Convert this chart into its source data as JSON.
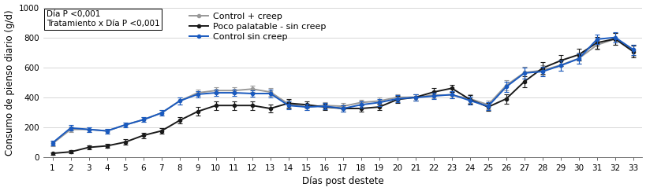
{
  "days": [
    1,
    2,
    3,
    4,
    5,
    6,
    7,
    8,
    9,
    10,
    11,
    12,
    13,
    14,
    15,
    16,
    17,
    18,
    19,
    20,
    21,
    22,
    23,
    24,
    25,
    26,
    27,
    28,
    29,
    30,
    31,
    32,
    33
  ],
  "control_creep": [
    90,
    185,
    185,
    175,
    215,
    250,
    295,
    375,
    430,
    445,
    445,
    455,
    435,
    355,
    335,
    345,
    340,
    365,
    375,
    400,
    400,
    415,
    415,
    390,
    350,
    480,
    565,
    580,
    615,
    660,
    750,
    790,
    715
  ],
  "poco_palatable": [
    25,
    35,
    65,
    75,
    100,
    145,
    175,
    245,
    305,
    345,
    345,
    345,
    325,
    360,
    350,
    335,
    325,
    325,
    335,
    385,
    400,
    435,
    460,
    385,
    335,
    390,
    505,
    595,
    645,
    685,
    765,
    790,
    705
  ],
  "control_sin_creep": [
    95,
    195,
    185,
    175,
    215,
    250,
    295,
    375,
    420,
    430,
    430,
    425,
    425,
    345,
    335,
    340,
    325,
    350,
    365,
    390,
    398,
    408,
    418,
    378,
    340,
    470,
    562,
    572,
    612,
    658,
    788,
    800,
    718
  ],
  "creep_err": [
    15,
    18,
    16,
    16,
    16,
    16,
    18,
    22,
    22,
    22,
    22,
    22,
    28,
    28,
    22,
    22,
    20,
    20,
    22,
    22,
    22,
    22,
    22,
    28,
    28,
    32,
    38,
    32,
    38,
    38,
    32,
    38,
    38
  ],
  "poco_err": [
    8,
    12,
    12,
    15,
    18,
    18,
    18,
    22,
    28,
    28,
    28,
    28,
    28,
    28,
    22,
    22,
    20,
    20,
    22,
    22,
    22,
    25,
    25,
    28,
    28,
    32,
    38,
    38,
    38,
    38,
    38,
    38,
    38
  ],
  "sin_creep_err": [
    15,
    18,
    16,
    16,
    16,
    16,
    18,
    22,
    22,
    22,
    22,
    22,
    25,
    25,
    22,
    22,
    20,
    20,
    22,
    22,
    22,
    22,
    22,
    25,
    25,
    32,
    35,
    32,
    35,
    35,
    32,
    35,
    35
  ],
  "color_creep": "#999999",
  "color_poco": "#1a1a1a",
  "color_sin_creep": "#1a5abf",
  "ylabel": "Consumo de pienso diario (g/d)",
  "xlabel": "Días post destete",
  "ylim": [
    0,
    1000
  ],
  "yticks": [
    0,
    200,
    400,
    600,
    800,
    1000
  ],
  "annotation_line1": "Día P <0,001",
  "annotation_line2": "Tratamiento x Día P <0,001",
  "legend_labels": [
    "Control + creep",
    "Poco palatable - sin creep",
    "Control sin creep"
  ],
  "axis_fontsize": 8.5,
  "tick_fontsize": 7.5,
  "annot_fontsize": 7.5,
  "legend_fontsize": 8.0
}
